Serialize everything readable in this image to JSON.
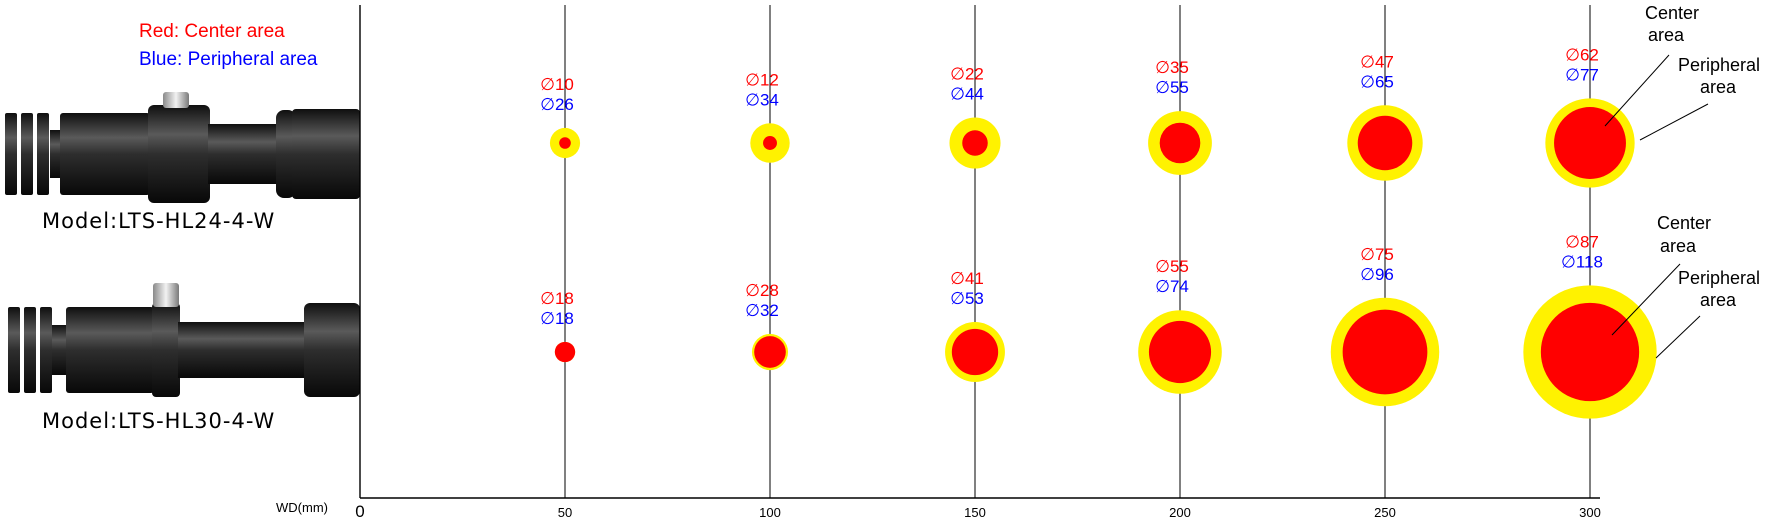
{
  "legend": {
    "red_label": "Red: Center area",
    "blue_label": "Blue: Peripheral area"
  },
  "colors": {
    "center": "#ff0000",
    "peripheral": "#fff200",
    "label_center": "#ff0000",
    "label_peripheral": "#0000ff",
    "axis": "#000000"
  },
  "axis": {
    "label": "WD(mm)",
    "ticks": [
      0,
      50,
      100,
      150,
      200,
      250,
      300
    ],
    "tick_labels": [
      "0",
      "50",
      "100",
      "150",
      "200",
      "250",
      "300"
    ]
  },
  "models": [
    {
      "name": "Model:LTS-HL24-4-W",
      "spots": [
        {
          "wd": 50,
          "center_label": "∅10",
          "peripheral_label": "∅26",
          "center": 10,
          "peripheral": 26
        },
        {
          "wd": 100,
          "center_label": "∅12",
          "peripheral_label": "∅34",
          "center": 12,
          "peripheral": 34
        },
        {
          "wd": 150,
          "center_label": "∅22",
          "peripheral_label": "∅44",
          "center": 22,
          "peripheral": 44
        },
        {
          "wd": 200,
          "center_label": "∅35",
          "peripheral_label": "∅55",
          "center": 35,
          "peripheral": 55
        },
        {
          "wd": 250,
          "center_label": "∅47",
          "peripheral_label": "∅65",
          "center": 47,
          "peripheral": 65
        },
        {
          "wd": 300,
          "center_label": "∅62",
          "peripheral_label": "∅77",
          "center": 62,
          "peripheral": 77
        }
      ],
      "callout_center": "Center area",
      "callout_peripheral": "Peripheral area"
    },
    {
      "name": "Model:LTS-HL30-4-W",
      "spots": [
        {
          "wd": 50,
          "center_label": "∅18",
          "peripheral_label": "∅18",
          "center": 18,
          "peripheral": 18
        },
        {
          "wd": 100,
          "center_label": "∅28",
          "peripheral_label": "∅32",
          "center": 28,
          "peripheral": 32
        },
        {
          "wd": 150,
          "center_label": "∅41",
          "peripheral_label": "∅53",
          "center": 41,
          "peripheral": 53
        },
        {
          "wd": 200,
          "center_label": "∅55",
          "peripheral_label": "∅74",
          "center": 55,
          "peripheral": 74
        },
        {
          "wd": 250,
          "center_label": "∅75",
          "peripheral_label": "∅96",
          "center": 75,
          "peripheral": 96
        },
        {
          "wd": 300,
          "center_label": "∅87",
          "peripheral_label": "∅118",
          "center": 87,
          "peripheral": 118
        }
      ],
      "callout_center": "Center area",
      "callout_peripheral": "Peripheral area"
    }
  ]
}
